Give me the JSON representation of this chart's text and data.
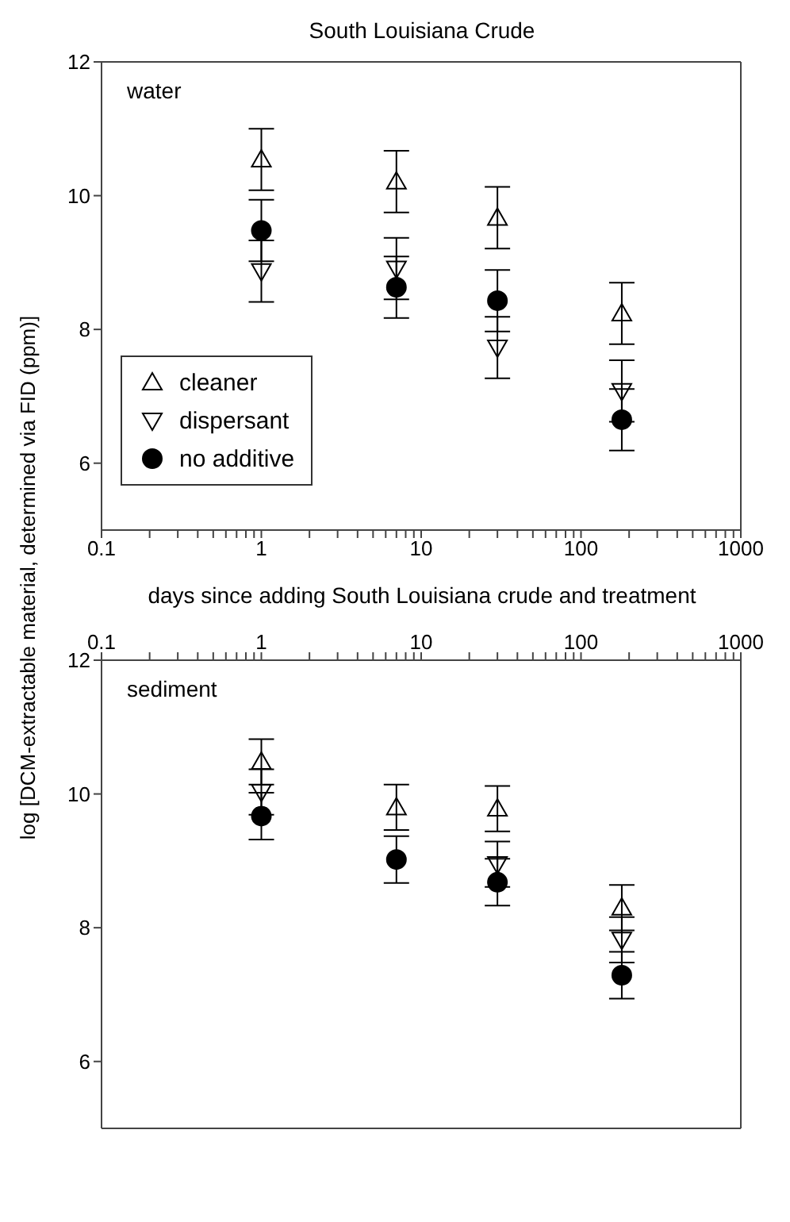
{
  "chart_data": [
    {
      "type": "scatter",
      "title": "South Louisiana Crude",
      "xlabel": "days since adding South Louisiana crude and treatment",
      "ylabel": "log [DCM-extractable material, determined via FID (ppm)]",
      "annotations": [
        "water"
      ],
      "x": [
        1,
        7,
        30,
        180
      ],
      "xlim": [
        0.1,
        1000
      ],
      "xticks": [
        0.1,
        {
          "value": 0.2,
          "label": null
        },
        {
          "value": 0.3,
          "label": null
        },
        {
          "value": 0.4,
          "label": null
        },
        {
          "value": 0.5,
          "label": null
        },
        {
          "value": 0.6,
          "label": null
        },
        {
          "value": 0.7,
          "label": null
        },
        {
          "value": 0.8,
          "label": null
        },
        {
          "value": 0.9,
          "label": null
        },
        1,
        {
          "value": 2,
          "label": null
        },
        {
          "value": 3,
          "label": null
        },
        {
          "value": 4,
          "label": null
        },
        {
          "value": 5,
          "label": null
        },
        {
          "value": 6,
          "label": null
        },
        {
          "value": 7,
          "label": null
        },
        {
          "value": 8,
          "label": null
        },
        {
          "value": 9,
          "label": null
        },
        10,
        {
          "value": 20,
          "label": null
        },
        {
          "value": 30,
          "label": null
        },
        {
          "value": 40,
          "label": null
        },
        {
          "value": 50,
          "label": null
        },
        {
          "value": 60,
          "label": null
        },
        {
          "value": 70,
          "label": null
        },
        {
          "value": 80,
          "label": null
        },
        {
          "value": 90,
          "label": null
        },
        100,
        {
          "value": 200,
          "label": null
        },
        {
          "value": 300,
          "label": null
        },
        {
          "value": 400,
          "label": null
        },
        {
          "value": 500,
          "label": null
        },
        {
          "value": 600,
          "label": null
        },
        {
          "value": 700,
          "label": null
        },
        {
          "value": 800,
          "label": null
        },
        {
          "value": 900,
          "label": null
        },
        1000
      ],
      "log": "x",
      "ylim": [
        5,
        12
      ],
      "yticks": [
        6,
        8,
        10,
        12
      ],
      "legend": "bottom left",
      "series": [
        {
          "name": "cleaner",
          "color": "#000000",
          "marker": "triangle",
          "values": [
            10.54,
            10.21,
            9.67,
            8.24
          ],
          "errors": [
            0.46,
            0.46,
            0.46,
            0.46
          ]
        },
        {
          "name": "dispersant",
          "color": "#000000",
          "marker": "triangle-down",
          "values": [
            8.87,
            8.91,
            7.73,
            7.08
          ],
          "errors": [
            0.46,
            0.46,
            0.46,
            0.46
          ]
        },
        {
          "name": "no additive",
          "color": "#000000",
          "marker": "circle",
          "values": [
            9.48,
            8.63,
            8.43,
            6.65
          ],
          "errors": [
            0.46,
            0.46,
            0.46,
            0.46
          ]
        }
      ]
    },
    {
      "type": "scatter",
      "annotations": [
        "sediment"
      ],
      "x": [
        1,
        7,
        30,
        180
      ],
      "x2lim": [
        0.1,
        1000
      ],
      "x2ticks": [
        0.1,
        {
          "value": 0.2,
          "label": null
        },
        {
          "value": 0.3,
          "label": null
        },
        {
          "value": 0.4,
          "label": null
        },
        {
          "value": 0.5,
          "label": null
        },
        {
          "value": 0.6,
          "label": null
        },
        {
          "value": 0.7,
          "label": null
        },
        {
          "value": 0.8,
          "label": null
        },
        {
          "value": 0.9,
          "label": null
        },
        1,
        {
          "value": 2,
          "label": null
        },
        {
          "value": 3,
          "label": null
        },
        {
          "value": 4,
          "label": null
        },
        {
          "value": 5,
          "label": null
        },
        {
          "value": 6,
          "label": null
        },
        {
          "value": 7,
          "label": null
        },
        {
          "value": 8,
          "label": null
        },
        {
          "value": 9,
          "label": null
        },
        10,
        {
          "value": 20,
          "label": null
        },
        {
          "value": 30,
          "label": null
        },
        {
          "value": 40,
          "label": null
        },
        {
          "value": 50,
          "label": null
        },
        {
          "value": 60,
          "label": null
        },
        {
          "value": 70,
          "label": null
        },
        {
          "value": 80,
          "label": null
        },
        {
          "value": 90,
          "label": null
        },
        100,
        {
          "value": 200,
          "label": null
        },
        {
          "value": 300,
          "label": null
        },
        {
          "value": 400,
          "label": null
        },
        {
          "value": 500,
          "label": null
        },
        {
          "value": 600,
          "label": null
        },
        {
          "value": 700,
          "label": null
        },
        {
          "value": 800,
          "label": null
        },
        {
          "value": 900,
          "label": null
        },
        1000
      ],
      "log": "x2",
      "ylim": [
        5,
        12
      ],
      "yticks": [
        6,
        8,
        10,
        12
      ],
      "series": [
        {
          "color": "#000000",
          "marker": "triangle",
          "axis": "x2",
          "values": [
            10.48,
            9.8,
            9.78,
            8.3
          ],
          "errors": [
            0.34,
            0.34,
            0.34,
            0.34
          ]
        },
        {
          "color": "#000000",
          "marker": "triangle-down",
          "axis": "x2",
          "values": [
            10.03,
            null,
            8.95,
            7.82
          ],
          "errors": [
            0.34,
            null,
            0.34,
            0.34
          ]
        },
        {
          "color": "#000000",
          "marker": "circle",
          "axis": "x2",
          "values": [
            9.67,
            9.02,
            8.68,
            7.29
          ],
          "errors": [
            0.35,
            0.35,
            0.35,
            0.35
          ]
        }
      ]
    }
  ]
}
